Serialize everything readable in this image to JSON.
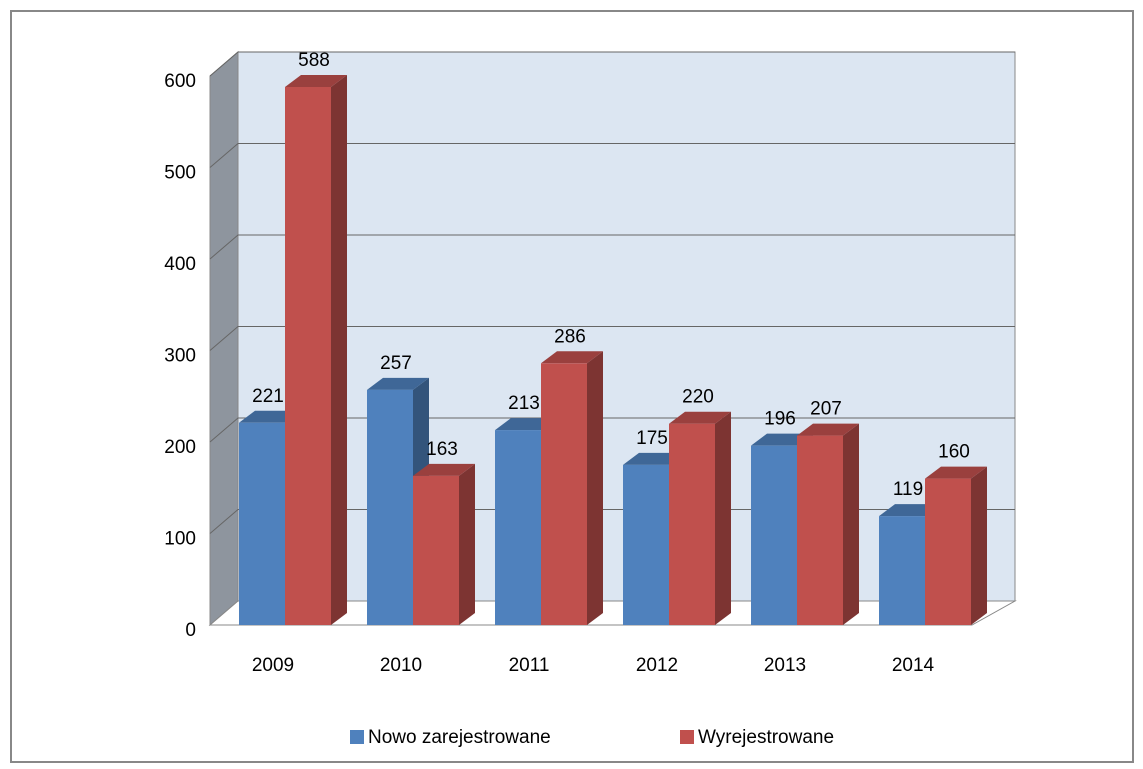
{
  "chart_data": {
    "type": "bar3d",
    "categories": [
      "2009",
      "2010",
      "2011",
      "2012",
      "2013",
      "2014"
    ],
    "series": [
      {
        "name": "Nowo zarejestrowane",
        "color": "#4f81bd",
        "values": [
          221,
          257,
          213,
          175,
          196,
          119
        ]
      },
      {
        "name": "Wyrejestrowane",
        "color": "#c0504d",
        "values": [
          588,
          163,
          286,
          220,
          207,
          160
        ]
      }
    ],
    "ylim": [
      0,
      600
    ],
    "yticks": [
      0,
      100,
      200,
      300,
      400,
      500,
      600
    ],
    "grid": true,
    "legend": "bottom"
  }
}
